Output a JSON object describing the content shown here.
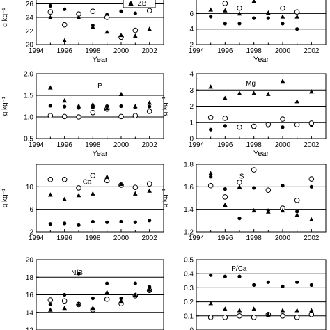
{
  "chart_data": [
    {
      "type": "scatter",
      "title": "",
      "legend": [
        "ZB"
      ],
      "ylabel": "g kg⁻¹",
      "xlabel": "Year",
      "xlim": [
        1994,
        2003
      ],
      "ylim": [
        20,
        28
      ],
      "yticks": [
        20,
        22,
        24,
        26
      ],
      "grid_y": [
        22,
        24,
        26
      ],
      "xticks": [
        1994,
        1996,
        1998,
        2000,
        2002
      ],
      "series": [
        {
          "marker": "dot",
          "x": [
            1995,
            1996,
            1997,
            1998,
            1999,
            2000,
            2001
          ],
          "y": [
            25.7,
            25.2,
            24.4,
            22.8,
            24.4,
            24.9,
            24.6
          ]
        },
        {
          "marker": "ring",
          "x": [
            1995,
            1996,
            1997,
            1998,
            1999,
            2000,
            2001,
            2002
          ],
          "y": [
            24.8,
            22.9,
            24.5,
            24.9,
            24.0,
            21.1,
            22.1,
            25.0
          ]
        },
        {
          "marker": "tri",
          "x": [
            1995,
            1996,
            1997,
            1998,
            1999,
            2000,
            2001,
            2002
          ],
          "y": [
            24.0,
            20.6,
            24.0,
            22.6,
            21.9,
            21.4,
            21.3,
            22.3
          ]
        }
      ]
    },
    {
      "type": "scatter",
      "title": "",
      "ylabel": "",
      "xlabel": "Year",
      "xlim": [
        1994,
        2003
      ],
      "ylim": [
        2,
        9
      ],
      "yticks": [
        2,
        4,
        6
      ],
      "grid_y": [
        4,
        6
      ],
      "xticks": [
        1994,
        1996,
        1998,
        2000,
        2002
      ],
      "series": [
        {
          "marker": "dot",
          "x": [
            1995,
            1996,
            1997,
            1998,
            1999,
            2000,
            2001
          ],
          "y": [
            5.6,
            4.7,
            4.7,
            5.4,
            5.4,
            4.7,
            4.0
          ]
        },
        {
          "marker": "ring",
          "x": [
            1995,
            1996,
            1997,
            1998,
            2000,
            2001
          ],
          "y": [
            8.5,
            7.3,
            6.7,
            8.5,
            6.7,
            6.2
          ]
        },
        {
          "marker": "tri",
          "x": [
            1995,
            1996,
            1997,
            1998,
            1999,
            2000,
            2001
          ],
          "y": [
            6.5,
            6.4,
            6.0,
            7.6,
            6.1,
            5.6,
            5.6
          ]
        }
      ]
    },
    {
      "type": "scatter",
      "title": "P",
      "ylabel": "g kg⁻¹",
      "xlabel": "Year",
      "xlim": [
        1994,
        2003
      ],
      "ylim": [
        0.5,
        2.0
      ],
      "yticks": [
        0.5,
        1.0,
        1.5,
        2.0
      ],
      "ytick_labels": [
        "0.5",
        "1.0",
        "1.5",
        "2.0"
      ],
      "grid_y": [
        1.0,
        1.5
      ],
      "xticks": [
        1994,
        1996,
        1998,
        2000,
        2002
      ],
      "series": [
        {
          "marker": "dot",
          "x": [
            1995,
            1996,
            1997,
            1998,
            1999,
            2000,
            2001,
            2002
          ],
          "y": [
            1.26,
            1.24,
            1.21,
            1.22,
            1.25,
            1.25,
            1.22,
            1.24
          ]
        },
        {
          "marker": "ring",
          "x": [
            1995,
            1996,
            1997,
            1998,
            1999,
            2000,
            2001,
            2002
          ],
          "y": [
            1.03,
            1.01,
            1.0,
            1.1,
            1.18,
            1.01,
            1.03,
            1.13
          ]
        },
        {
          "marker": "tri",
          "x": [
            1995,
            1996,
            1997,
            1998,
            1999,
            2000,
            2001,
            2002
          ],
          "y": [
            1.68,
            1.38,
            1.26,
            1.29,
            1.2,
            1.53,
            1.25,
            1.33
          ]
        }
      ]
    },
    {
      "type": "scatter",
      "title": "Mg",
      "ylabel": "g kg⁻¹",
      "xlabel": "Year",
      "xlim": [
        1994,
        2003
      ],
      "ylim": [
        0,
        4
      ],
      "yticks": [
        0,
        1,
        2,
        3,
        4
      ],
      "grid_y": [
        1,
        2,
        3
      ],
      "xticks": [
        1994,
        1996,
        1998,
        2000,
        2002
      ],
      "series": [
        {
          "marker": "dot",
          "x": [
            1995,
            1996,
            1997,
            1998,
            1999,
            2000,
            2001,
            2002
          ],
          "y": [
            0.55,
            0.78,
            0.7,
            0.67,
            0.78,
            0.7,
            0.8,
            0.82
          ]
        },
        {
          "marker": "ring",
          "x": [
            1995,
            1996,
            1997,
            1998,
            1999,
            2000,
            2001,
            2002
          ],
          "y": [
            1.3,
            1.25,
            0.7,
            0.75,
            0.87,
            1.2,
            0.85,
            0.95
          ]
        },
        {
          "marker": "tri",
          "x": [
            1995,
            1996,
            1997,
            1998,
            1999,
            2000,
            2001,
            2002
          ],
          "y": [
            3.2,
            2.5,
            2.8,
            2.8,
            2.75,
            3.55,
            2.3,
            2.9
          ]
        }
      ]
    },
    {
      "type": "scatter",
      "title": "Ca",
      "ylabel": "g kg⁻¹",
      "xlabel": "",
      "xlim": [
        1994,
        2003
      ],
      "ylim": [
        2,
        14
      ],
      "yticks": [
        2,
        6,
        10
      ],
      "grid_y": [
        6,
        10
      ],
      "xticks": [
        1994,
        1996,
        1998,
        2000,
        2002
      ],
      "series": [
        {
          "marker": "dot",
          "x": [
            1995,
            1996,
            1997,
            1998,
            1999,
            2000,
            2001,
            2002
          ],
          "y": [
            3.4,
            3.5,
            3.2,
            3.8,
            3.7,
            3.8,
            3.7,
            4.0
          ]
        },
        {
          "marker": "ring",
          "x": [
            1995,
            1996,
            1997,
            1998,
            1999,
            2000,
            2001,
            2002
          ],
          "y": [
            11.3,
            11.3,
            9.8,
            12.0,
            11.1,
            10.3,
            9.9,
            10.5
          ]
        },
        {
          "marker": "tri",
          "x": [
            1995,
            1996,
            1997,
            1998,
            1999,
            2000,
            2001,
            2002
          ],
          "y": [
            8.6,
            7.8,
            8.5,
            8.8,
            11.8,
            10.5,
            8.8,
            9.3
          ]
        }
      ]
    },
    {
      "type": "scatter",
      "title": "S",
      "ylabel": "g kg⁻¹",
      "xlabel": "",
      "xlim": [
        1994,
        2003
      ],
      "ylim": [
        1.2,
        1.8
      ],
      "yticks": [
        1.2,
        1.4,
        1.6,
        1.8
      ],
      "ytick_labels": [
        "1.2",
        "1.4",
        "1.6",
        "1.8"
      ],
      "grid_y": [
        1.4,
        1.6
      ],
      "xticks": [
        1994,
        1996,
        1998,
        2000,
        2002
      ],
      "series": [
        {
          "marker": "dot",
          "x": [
            1995,
            1996,
            1997,
            1998,
            1999,
            2000,
            2001,
            2002
          ],
          "y": [
            1.69,
            1.58,
            1.32,
            1.59,
            1.39,
            1.61,
            1.38,
            1.6
          ]
        },
        {
          "marker": "ring",
          "x": [
            1995,
            1996,
            1997,
            1998,
            1999,
            2000,
            2001,
            2002
          ],
          "y": [
            1.61,
            1.51,
            1.64,
            1.75,
            1.57,
            1.41,
            1.48,
            1.67
          ]
        },
        {
          "marker": "tri",
          "x": [
            1995,
            1996,
            1997,
            1998,
            1999,
            2000,
            2001,
            2002
          ],
          "y": [
            1.72,
            1.44,
            1.6,
            1.39,
            1.38,
            1.39,
            1.35,
            1.31
          ]
        }
      ]
    },
    {
      "type": "scatter",
      "title": "N/S",
      "ylabel": "",
      "xlabel": "",
      "xlim": [
        1994,
        2003
      ],
      "ylim": [
        12,
        20
      ],
      "yticks": [
        12,
        14,
        16,
        18,
        20
      ],
      "grid_y": [
        14,
        16,
        18
      ],
      "xticks": [],
      "series": [
        {
          "marker": "dot",
          "x": [
            1995,
            1996,
            1997,
            1998,
            1999,
            2000,
            2001,
            2002
          ],
          "y": [
            14.9,
            16.0,
            18.4,
            15.6,
            17.3,
            15.6,
            17.3,
            16.9
          ]
        },
        {
          "marker": "ring",
          "x": [
            1995,
            1996,
            1997,
            1998,
            1999,
            2000,
            2001,
            2002
          ],
          "y": [
            15.4,
            15.3,
            14.9,
            14.3,
            15.5,
            15.0,
            15.9,
            16.5
          ]
        },
        {
          "marker": "tri",
          "x": [
            1995,
            1996,
            1997,
            1998,
            1999,
            2000,
            2001,
            2002
          ],
          "y": [
            14.3,
            14.5,
            15.0,
            14.5,
            16.3,
            15.3,
            16.0,
            16.6
          ]
        }
      ]
    },
    {
      "type": "scatter",
      "title": "P/Ca",
      "ylabel": "",
      "xlabel": "",
      "xlim": [
        1994,
        2003
      ],
      "ylim": [
        0,
        0.5
      ],
      "yticks": [
        0,
        0.1,
        0.2,
        0.3,
        0.4,
        0.5
      ],
      "ytick_labels": [
        "0",
        "0.1",
        "0.2",
        "0.3",
        "0.4",
        "0.5"
      ],
      "grid_y": [
        0.1,
        0.2,
        0.3,
        0.4
      ],
      "xticks": [],
      "series": [
        {
          "marker": "dot",
          "x": [
            1995,
            1996,
            1997,
            1998,
            1999,
            2000,
            2001,
            2002
          ],
          "y": [
            0.39,
            0.38,
            0.38,
            0.32,
            0.34,
            0.31,
            0.34,
            0.32
          ]
        },
        {
          "marker": "ring",
          "x": [
            1995,
            1996,
            1997,
            1998,
            1999,
            2000,
            2001,
            2002
          ],
          "y": [
            0.09,
            0.09,
            0.1,
            0.09,
            0.11,
            0.1,
            0.09,
            0.11
          ]
        },
        {
          "marker": "tri",
          "x": [
            1995,
            1996,
            1997,
            1998,
            1999,
            2000,
            2001,
            2002
          ],
          "y": [
            0.19,
            0.15,
            0.14,
            0.15,
            0.11,
            0.14,
            0.14,
            0.14
          ]
        }
      ]
    }
  ]
}
